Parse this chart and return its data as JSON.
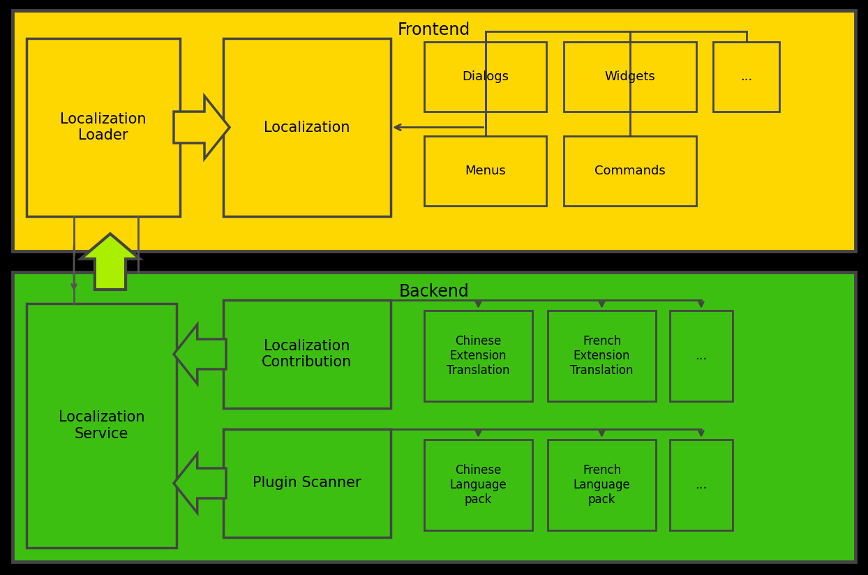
{
  "fig_width": 12.44,
  "fig_height": 8.24,
  "bg_color": "#000000",
  "frontend_bg": "#FFD700",
  "backend_bg": "#3DBF12",
  "box_yellow_fill": "#FFD700",
  "box_edge": "#444444",
  "box_green_fill": "#3DBF12",
  "frontend_label": "Frontend",
  "backend_label": "Backend",
  "loc_loader_label": "Localization\nLoader",
  "localization_label": "Localization",
  "dialogs_label": "Dialogs",
  "widgets_label": "Widgets",
  "dots_label": "...",
  "menus_label": "Menus",
  "commands_label": "Commands",
  "loc_service_label": "Localization\nService",
  "loc_contrib_label": "Localization\nContribution",
  "plugin_scanner_label": "Plugin Scanner",
  "chinese_ext_label": "Chinese\nExtension\nTranslation",
  "french_ext_label": "French\nExtension\nTranslation",
  "dots2_label": "...",
  "chinese_lang_label": "Chinese\nLanguage\npack",
  "french_lang_label": "French\nLanguage\npack",
  "dots3_label": "..."
}
